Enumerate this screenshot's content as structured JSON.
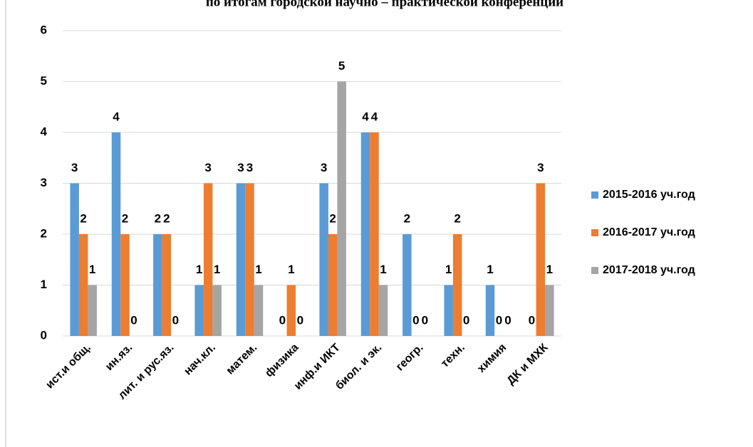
{
  "chart_data": {
    "type": "bar",
    "title": "по итогам городской научно – практической конференции",
    "categories": [
      "ист.и общ.",
      "ин.яз.",
      "лит. и рус.яз.",
      "нач.кл.",
      "матем.",
      "физика",
      "инф.и ИКТ",
      "биол. и эк.",
      "геогр.",
      "техн.",
      "химия",
      "ДК и МХК"
    ],
    "series": [
      {
        "name": "2015-2016 уч.год",
        "color": "#5b9bd5",
        "values": [
          3,
          4,
          2,
          1,
          3,
          0,
          3,
          4,
          2,
          1,
          1,
          0
        ]
      },
      {
        "name": "2016-2017 уч.год",
        "color": "#ed7d31",
        "values": [
          2,
          2,
          2,
          3,
          3,
          1,
          2,
          4,
          0,
          2,
          0,
          3
        ]
      },
      {
        "name": "2017-2018 уч.год",
        "color": "#a5a5a5",
        "values": [
          1,
          0,
          0,
          1,
          1,
          0,
          5,
          1,
          0,
          0,
          0,
          1
        ]
      }
    ],
    "ylim": [
      0,
      6
    ],
    "yticks": [
      0,
      1,
      2,
      3,
      4,
      5,
      6
    ],
    "grid": true,
    "legend": "right"
  }
}
